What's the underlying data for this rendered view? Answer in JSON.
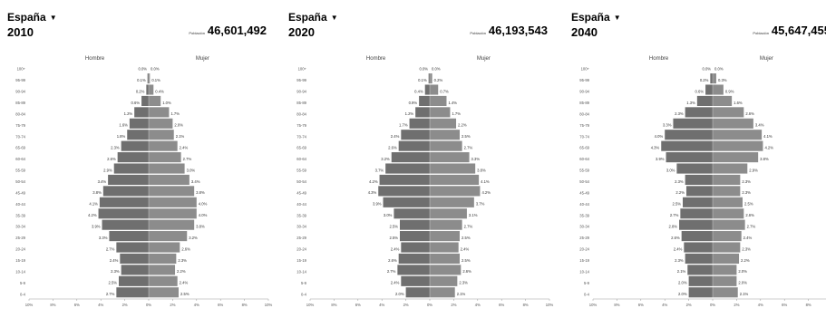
{
  "chart_data": [
    {
      "type": "bar",
      "country": "España",
      "year": "2010",
      "population_label": "Población",
      "population_value": "46,601,492",
      "left_label": "Hombre",
      "right_label": "Mujer",
      "xlim": [
        -10,
        10
      ],
      "x_ticks": [
        "10%",
        "8%",
        "6%",
        "4%",
        "2%",
        "0%",
        "2%",
        "4%",
        "6%",
        "8%",
        "10%"
      ],
      "categories": [
        "0-4",
        "5-9",
        "10-14",
        "15-19",
        "20-24",
        "25-29",
        "30-34",
        "35-39",
        "40-44",
        "45-49",
        "50-54",
        "55-59",
        "60-64",
        "65-69",
        "70-74",
        "75-79",
        "80-84",
        "85-89",
        "90-94",
        "95-99",
        "100+"
      ],
      "series": [
        {
          "name": "Hombre",
          "values": [
            2.7,
            2.5,
            2.3,
            2.4,
            2.7,
            3.3,
            3.9,
            4.2,
            4.1,
            3.8,
            3.4,
            2.9,
            2.6,
            2.3,
            1.8,
            1.6,
            1.2,
            0.6,
            0.2,
            0.1,
            0.0
          ]
        },
        {
          "name": "Mujer",
          "values": [
            2.5,
            2.4,
            2.2,
            2.3,
            2.6,
            3.2,
            3.8,
            4.0,
            4.0,
            3.8,
            3.4,
            3.0,
            2.7,
            2.4,
            2.1,
            2.0,
            1.7,
            1.0,
            0.4,
            0.1,
            0.0
          ]
        }
      ],
      "colors": {
        "male": "#6f6f6f",
        "female": "#8c8c8c"
      }
    },
    {
      "type": "bar",
      "country": "España",
      "year": "2020",
      "population_label": "Población",
      "population_value": "46,193,543",
      "left_label": "Hombre",
      "right_label": "Mujer",
      "xlim": [
        -10,
        10
      ],
      "x_ticks": [
        "10%",
        "8%",
        "6%",
        "4%",
        "2%",
        "0%",
        "2%",
        "4%",
        "6%",
        "8%",
        "10%"
      ],
      "categories": [
        "0-4",
        "5-9",
        "10-14",
        "15-19",
        "20-24",
        "25-29",
        "30-34",
        "35-39",
        "40-44",
        "45-49",
        "50-54",
        "55-59",
        "60-64",
        "65-69",
        "70-74",
        "75-79",
        "80-84",
        "85-89",
        "90-94",
        "95-99",
        "100+"
      ],
      "series": [
        {
          "name": "Hombre",
          "values": [
            2.0,
            2.4,
            2.7,
            2.6,
            2.4,
            2.5,
            2.5,
            3.0,
            3.9,
            4.3,
            4.2,
            3.7,
            3.2,
            2.6,
            2.4,
            1.7,
            1.2,
            0.9,
            0.4,
            0.1,
            0.0
          ]
        },
        {
          "name": "Mujer",
          "values": [
            2.1,
            2.3,
            2.6,
            2.5,
            2.4,
            2.5,
            2.7,
            3.1,
            3.7,
            4.2,
            4.1,
            3.8,
            3.3,
            2.7,
            2.5,
            2.2,
            1.7,
            1.4,
            0.7,
            0.2,
            0.0
          ]
        }
      ],
      "colors": {
        "male": "#6f6f6f",
        "female": "#8c8c8c"
      }
    },
    {
      "type": "bar",
      "country": "España",
      "year": "2040",
      "population_label": "Población",
      "population_value": "45,647,455",
      "left_label": "Hombre",
      "right_label": "Mujer",
      "xlim": [
        -10,
        10
      ],
      "x_ticks": [
        "10%",
        "8%",
        "6%",
        "4%",
        "2%",
        "0%",
        "2%",
        "4%",
        "6%",
        "8%",
        "10%"
      ],
      "categories": [
        "0-4",
        "5-9",
        "10-14",
        "15-19",
        "20-24",
        "25-29",
        "30-34",
        "35-39",
        "40-44",
        "45-49",
        "50-54",
        "55-59",
        "60-64",
        "65-69",
        "70-74",
        "75-79",
        "80-84",
        "85-89",
        "90-94",
        "95-99",
        "100+"
      ],
      "series": [
        {
          "name": "Hombre",
          "values": [
            2.0,
            2.0,
            2.1,
            2.3,
            2.4,
            2.6,
            2.8,
            2.7,
            2.5,
            2.2,
            2.3,
            3.0,
            3.9,
            4.3,
            4.0,
            3.3,
            2.3,
            1.3,
            0.6,
            0.2,
            0.0
          ]
        },
        {
          "name": "Mujer",
          "values": [
            2.1,
            2.0,
            2.0,
            2.2,
            2.3,
            2.4,
            2.7,
            2.6,
            2.5,
            2.3,
            2.3,
            2.9,
            3.8,
            4.2,
            4.1,
            3.4,
            2.6,
            1.6,
            0.9,
            0.3,
            0.0
          ]
        }
      ],
      "colors": {
        "male": "#6f6f6f",
        "female": "#8c8c8c"
      }
    }
  ]
}
